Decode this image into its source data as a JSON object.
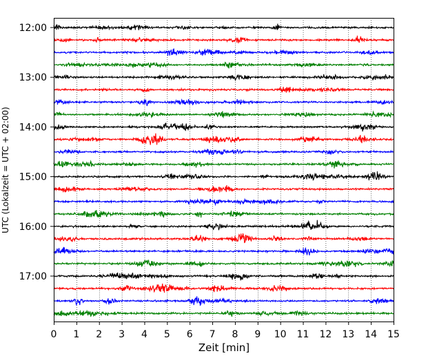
{
  "chart_data": {
    "type": "line",
    "chart_kind": "helicorder seismogram",
    "xlabel": "Zeit  [min]",
    "ylabel": "UTC (Lokalzeit = UTC + 02:00)",
    "xlim": [
      0,
      15
    ],
    "x_ticks": [
      0,
      1,
      2,
      3,
      4,
      5,
      6,
      7,
      8,
      9,
      10,
      11,
      12,
      13,
      14,
      15
    ],
    "x_tick_labels": [
      "0",
      "1",
      "2",
      "3",
      "4",
      "5",
      "6",
      "7",
      "8",
      "9",
      "10",
      "11",
      "12",
      "13",
      "14",
      "15"
    ],
    "y_tick_labels": [
      "12:00",
      "13:00",
      "14:00",
      "15:00",
      "16:00",
      "17:00"
    ],
    "y_tick_rows": [
      0,
      4,
      8,
      12,
      16,
      20
    ],
    "row_count": 24,
    "row_interval_min": 15,
    "vertical_grid": "dotted",
    "line_colors": [
      "#000000",
      "#ff0000",
      "#0000ff",
      "#008000"
    ],
    "rows": [
      {
        "start": "12:00",
        "color": "#000000"
      },
      {
        "start": "12:15",
        "color": "#ff0000"
      },
      {
        "start": "12:30",
        "color": "#0000ff"
      },
      {
        "start": "12:45",
        "color": "#008000"
      },
      {
        "start": "13:00",
        "color": "#000000"
      },
      {
        "start": "13:15",
        "color": "#ff0000"
      },
      {
        "start": "13:30",
        "color": "#0000ff"
      },
      {
        "start": "13:45",
        "color": "#008000"
      },
      {
        "start": "14:00",
        "color": "#000000"
      },
      {
        "start": "14:15",
        "color": "#ff0000"
      },
      {
        "start": "14:30",
        "color": "#0000ff"
      },
      {
        "start": "14:45",
        "color": "#008000"
      },
      {
        "start": "15:00",
        "color": "#000000"
      },
      {
        "start": "15:15",
        "color": "#ff0000"
      },
      {
        "start": "15:30",
        "color": "#0000ff"
      },
      {
        "start": "15:45",
        "color": "#008000"
      },
      {
        "start": "16:00",
        "color": "#000000"
      },
      {
        "start": "16:15",
        "color": "#ff0000"
      },
      {
        "start": "16:30",
        "color": "#0000ff"
      },
      {
        "start": "16:45",
        "color": "#008000"
      },
      {
        "start": "17:00",
        "color": "#000000"
      },
      {
        "start": "17:15",
        "color": "#ff0000"
      },
      {
        "start": "17:30",
        "color": "#0000ff"
      },
      {
        "start": "17:45",
        "color": "#008000"
      }
    ]
  }
}
